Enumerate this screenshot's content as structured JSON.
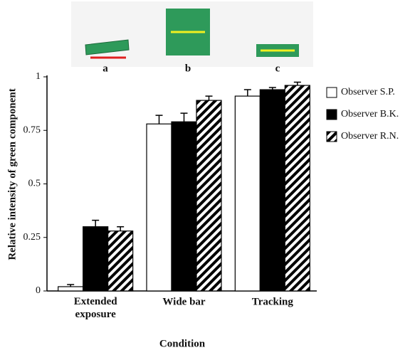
{
  "illustration": {
    "labels": [
      "a",
      "b",
      "c"
    ]
  },
  "chart_data": {
    "type": "bar",
    "categories": [
      "Extended exposure",
      "Wide bar",
      "Tracking"
    ],
    "series": [
      {
        "name": "Observer S.P.",
        "color": "#ffffff",
        "values": [
          0.02,
          0.78,
          0.91
        ],
        "errors": [
          0.01,
          0.04,
          0.03
        ]
      },
      {
        "name": "Observer B.K.",
        "color": "#000000",
        "values": [
          0.3,
          0.79,
          0.94
        ],
        "errors": [
          0.03,
          0.04,
          0.01
        ]
      },
      {
        "name": "Observer R.N.",
        "color": "#000000",
        "hatch": true,
        "values": [
          0.28,
          0.89,
          0.96
        ],
        "errors": [
          0.02,
          0.02,
          0.015
        ]
      }
    ],
    "ylim": [
      0,
      1
    ],
    "yticks": [
      0,
      0.25,
      0.5,
      0.75,
      1
    ],
    "ylabel": "Relative intensity of green component",
    "xlabel": "Condition",
    "legend": "right"
  }
}
